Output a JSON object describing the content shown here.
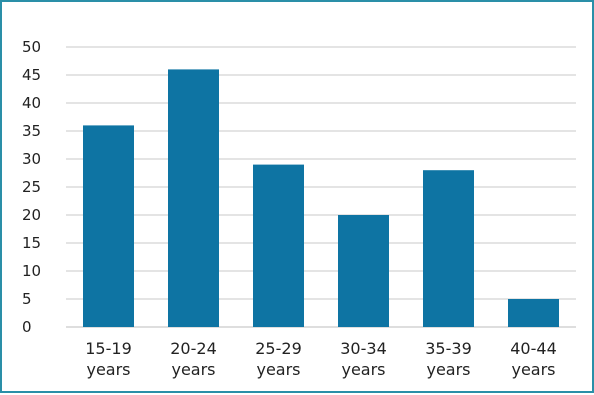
{
  "chart_data": {
    "type": "bar",
    "title": "",
    "xlabel": "",
    "ylabel": "",
    "categories": [
      [
        "15-19",
        "years"
      ],
      [
        "20-24",
        "years"
      ],
      [
        "25-29",
        "years"
      ],
      [
        "30-34",
        "years"
      ],
      [
        "35-39",
        "years"
      ],
      [
        "40-44",
        "years"
      ]
    ],
    "values": [
      36,
      46,
      29,
      20,
      28,
      5
    ],
    "ylim": [
      0,
      50
    ],
    "yticks": [
      0,
      5,
      10,
      15,
      20,
      25,
      30,
      35,
      40,
      45,
      50
    ],
    "grid": true,
    "legend": "none",
    "colors": {
      "bar": "#0e74a3",
      "grid": "#c8c8c8",
      "axis": "#bdbdbd",
      "frame": "#2a8fa8"
    }
  }
}
